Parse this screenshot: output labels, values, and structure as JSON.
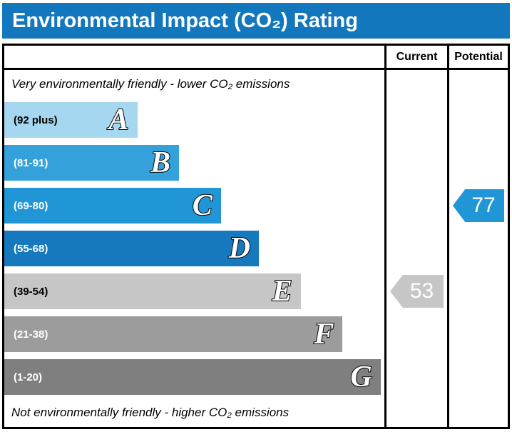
{
  "title": "Environmental Impact (CO₂) Rating",
  "accent_color": "#1277bd",
  "columns": {
    "current": "Current",
    "potential": "Potential"
  },
  "notes": {
    "top": "Very environmentally friendly - lower CO₂ emissions",
    "bottom": "Not environmentally friendly - higher CO₂ emissions"
  },
  "chart_data": {
    "type": "bar",
    "title": "Environmental Impact (CO₂) Rating",
    "bands": [
      {
        "letter": "A",
        "range": "(92 plus)",
        "color": "#a5d8f0",
        "width_pct": 35,
        "text_color": "#000000"
      },
      {
        "letter": "B",
        "range": "(81-91)",
        "color": "#35a1da",
        "width_pct": 46,
        "text_color": "#ffffff"
      },
      {
        "letter": "C",
        "range": "(69-80)",
        "color": "#2196d6",
        "width_pct": 57,
        "text_color": "#ffffff"
      },
      {
        "letter": "D",
        "range": "(55-68)",
        "color": "#1779bd",
        "width_pct": 67,
        "text_color": "#ffffff"
      },
      {
        "letter": "E",
        "range": "(39-54)",
        "color": "#c6c6c6",
        "width_pct": 78,
        "text_color": "#000000"
      },
      {
        "letter": "F",
        "range": "(21-38)",
        "color": "#9c9c9c",
        "width_pct": 89,
        "text_color": "#ffffff"
      },
      {
        "letter": "G",
        "range": "(1-20)",
        "color": "#7f7f7f",
        "width_pct": 99,
        "text_color": "#ffffff"
      }
    ],
    "current": {
      "value": "53",
      "band": "E",
      "color": "#c6c6c6"
    },
    "potential": {
      "value": "77",
      "band": "C",
      "color": "#2196d6"
    }
  }
}
